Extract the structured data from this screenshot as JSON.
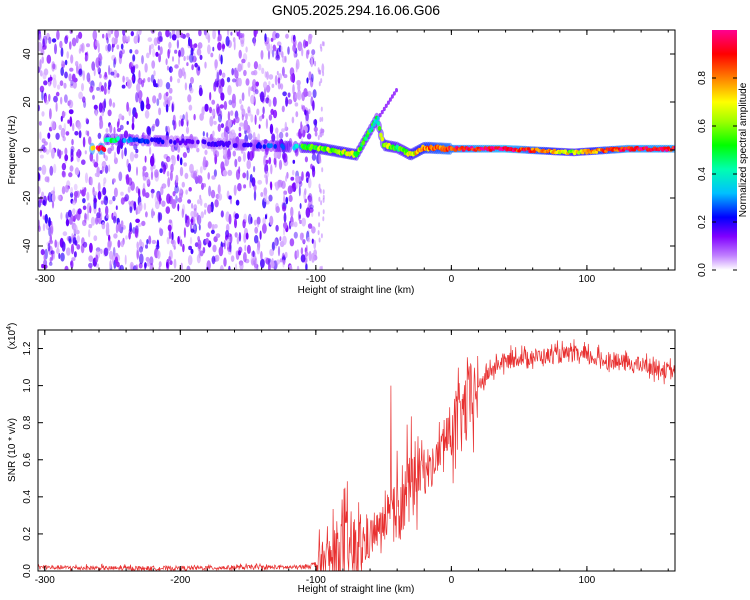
{
  "title": "GN05.2025.294.16.06.G06",
  "chart_data": [
    {
      "type": "heatmap",
      "title": "GN05.2025.294.16.06.G06",
      "xlabel": "Height of straight line (km)",
      "ylabel": "Frequency (Hz)",
      "xlim": [
        -305,
        165
      ],
      "ylim": [
        -50,
        50
      ],
      "xticks": [
        -300,
        -200,
        -100,
        0,
        100
      ],
      "xtick_labels": [
        "-300",
        "-200",
        "-100",
        "0",
        "100"
      ],
      "yticks": [
        -40,
        -20,
        0,
        20,
        40
      ],
      "ytick_labels": [
        "-40",
        "-20",
        "0",
        "20",
        "40"
      ],
      "colorbar": {
        "label": "Normalized spectral amplitude",
        "range": [
          0,
          1
        ],
        "ticks": [
          0.0,
          0.2,
          0.4,
          0.6,
          0.8
        ],
        "tick_labels": [
          "0.0",
          "0.2",
          "0.4",
          "0.6",
          "0.8"
        ],
        "colors": [
          "#ffffff",
          "#8000ff",
          "#0000ff",
          "#00ffff",
          "#00ff00",
          "#ffff00",
          "#ff8000",
          "#ff0000",
          "#ff00a0"
        ]
      },
      "ridge": [
        {
          "x": -255,
          "y": 4.5,
          "value": 0.45
        },
        {
          "x": -200,
          "y": 3.5,
          "value": 0.2
        },
        {
          "x": -150,
          "y": 2.0,
          "value": 0.25
        },
        {
          "x": -100,
          "y": 1.0,
          "value": 0.55
        },
        {
          "x": -80,
          "y": -1.0,
          "value": 0.6
        },
        {
          "x": -70,
          "y": -2.0,
          "value": 0.55
        },
        {
          "x": -55,
          "y": 13.0,
          "value": 0.45
        },
        {
          "x": -50,
          "y": 2.0,
          "value": 0.6
        },
        {
          "x": -40,
          "y": 1.0,
          "value": 0.5
        },
        {
          "x": -30,
          "y": -2.0,
          "value": 0.6
        },
        {
          "x": -20,
          "y": 1.0,
          "value": 0.75
        },
        {
          "x": 0,
          "y": 0.5,
          "value": 0.85
        },
        {
          "x": 40,
          "y": 0.5,
          "value": 0.95
        },
        {
          "x": 90,
          "y": -1.0,
          "value": 0.6
        },
        {
          "x": 130,
          "y": 0.5,
          "value": 0.9
        },
        {
          "x": 165,
          "y": 0.5,
          "value": 0.9
        }
      ]
    },
    {
      "type": "line",
      "xlabel": "Height of straight line (km)",
      "ylabel": "SNR (10 * v/v)",
      "y_multiplier": "(x10⁴)",
      "multiplier_base": "(x10",
      "multiplier_exp": "4",
      "multiplier_close": ")",
      "xlim": [
        -305,
        165
      ],
      "ylim": [
        0,
        1.3
      ],
      "xticks": [
        -300,
        -200,
        -100,
        0,
        100
      ],
      "xtick_labels": [
        "-300",
        "-200",
        "-100",
        "0",
        "100"
      ],
      "yticks": [
        0.0,
        0.2,
        0.4,
        0.6,
        0.8,
        1.0,
        1.2
      ],
      "ytick_labels": [
        "0.0",
        "0.2",
        "0.4",
        "0.6",
        "0.8",
        "1.0",
        "1.2"
      ],
      "series": [
        {
          "name": "SNR",
          "color": "#e83030",
          "x": [
            -305,
            -250,
            -200,
            -150,
            -110,
            -95,
            -85,
            -78,
            -70,
            -60,
            -50,
            -40,
            -30,
            -25,
            -15,
            -5,
            5,
            15,
            25,
            35,
            50,
            70,
            90,
            110,
            130,
            150,
            165
          ],
          "values": [
            0.02,
            0.015,
            0.015,
            0.02,
            0.02,
            0.05,
            0.08,
            0.12,
            0.1,
            0.18,
            0.25,
            0.35,
            0.45,
            0.55,
            0.55,
            0.7,
            0.8,
            0.93,
            1.05,
            1.12,
            1.15,
            1.16,
            1.17,
            1.14,
            1.12,
            1.1,
            1.07
          ]
        }
      ]
    }
  ]
}
